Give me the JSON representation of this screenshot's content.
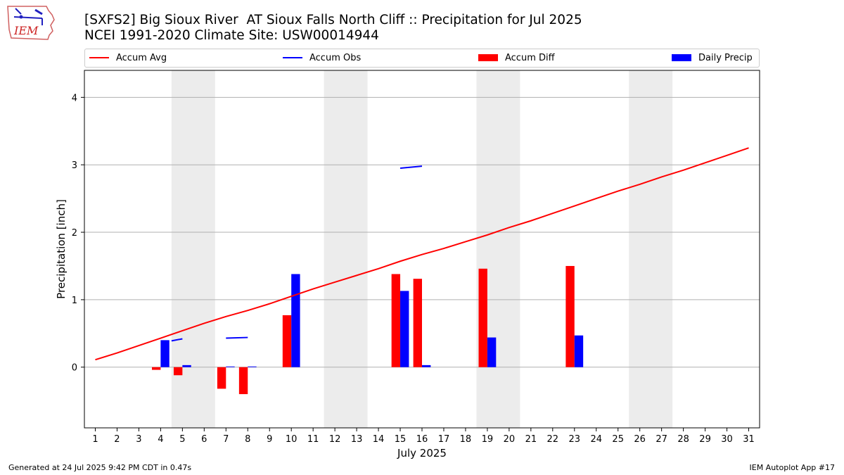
{
  "header": {
    "logo_text": "IEM",
    "title_line1": "[SXFS2] Big Sioux River  AT Sioux Falls North Cliff :: Precipitation for Jul 2025",
    "title_line2": "NCEI 1991-2020 Climate Site: USW00014944"
  },
  "legend": {
    "accum_avg": "Accum Avg",
    "accum_obs": "Accum Obs",
    "accum_diff": "Accum Diff",
    "daily_precip": "Daily Precip"
  },
  "footer": {
    "generated": "Generated at 24 Jul 2025 9:42 PM CDT in 0.47s",
    "app": "IEM Autoplot App #17"
  },
  "colors": {
    "accum_avg": "#ff0000",
    "accum_obs": "#0000ff",
    "accum_diff": "#ff0000",
    "daily_precip": "#0000ff",
    "weekend_shade": "#ececec",
    "grid": "#b0b0b0"
  },
  "chart_data": {
    "type": "bar",
    "xlabel": "July 2025",
    "ylabel": "Precipitation [inch]",
    "xlim": [
      0.5,
      31.5
    ],
    "ylim": [
      -0.9,
      4.4
    ],
    "yticks": [
      0,
      1,
      2,
      3,
      4
    ],
    "x": [
      1,
      2,
      3,
      4,
      5,
      6,
      7,
      8,
      9,
      10,
      11,
      12,
      13,
      14,
      15,
      16,
      17,
      18,
      19,
      20,
      21,
      22,
      23,
      24,
      25,
      26,
      27,
      28,
      29,
      30,
      31
    ],
    "grid": "horizontal",
    "legend_position": "top",
    "shaded_day_ranges": [
      [
        5,
        6
      ],
      [
        12,
        13
      ],
      [
        19,
        20
      ],
      [
        26,
        27
      ]
    ],
    "series": [
      {
        "name": "Accum Avg",
        "type": "line",
        "x": [
          1,
          2,
          3,
          4,
          5,
          6,
          7,
          8,
          9,
          10,
          11,
          12,
          13,
          14,
          15,
          16,
          17,
          18,
          19,
          20,
          21,
          22,
          23,
          24,
          25,
          26,
          27,
          28,
          29,
          30,
          31
        ],
        "values": [
          0.11,
          0.21,
          0.32,
          0.43,
          0.54,
          0.65,
          0.75,
          0.84,
          0.94,
          1.05,
          1.16,
          1.26,
          1.36,
          1.46,
          1.57,
          1.67,
          1.76,
          1.86,
          1.96,
          2.07,
          2.17,
          2.28,
          2.39,
          2.5,
          2.61,
          2.71,
          2.82,
          2.92,
          3.03,
          3.14,
          3.25
        ]
      },
      {
        "name": "Accum Obs",
        "type": "line",
        "segments": [
          [
            [
              4.5,
              0.39
            ],
            [
              5,
              0.42
            ]
          ],
          [
            [
              7,
              0.43
            ],
            [
              8,
              0.44
            ]
          ],
          [
            [
              15,
              2.95
            ],
            [
              16,
              2.98
            ]
          ]
        ]
      },
      {
        "name": "Accum Diff",
        "type": "bar",
        "x": [
          4,
          5,
          7,
          8,
          10,
          15,
          16,
          19,
          23
        ],
        "values": [
          -0.04,
          -0.12,
          -0.32,
          -0.4,
          0.77,
          1.38,
          1.31,
          1.46,
          1.5
        ]
      },
      {
        "name": "Daily Precip",
        "type": "bar",
        "x": [
          4,
          5,
          7,
          8,
          10,
          15,
          16,
          19,
          23
        ],
        "values": [
          0.4,
          0.03,
          0.01,
          0.01,
          1.38,
          1.13,
          0.03,
          0.44,
          0.47
        ]
      }
    ]
  }
}
